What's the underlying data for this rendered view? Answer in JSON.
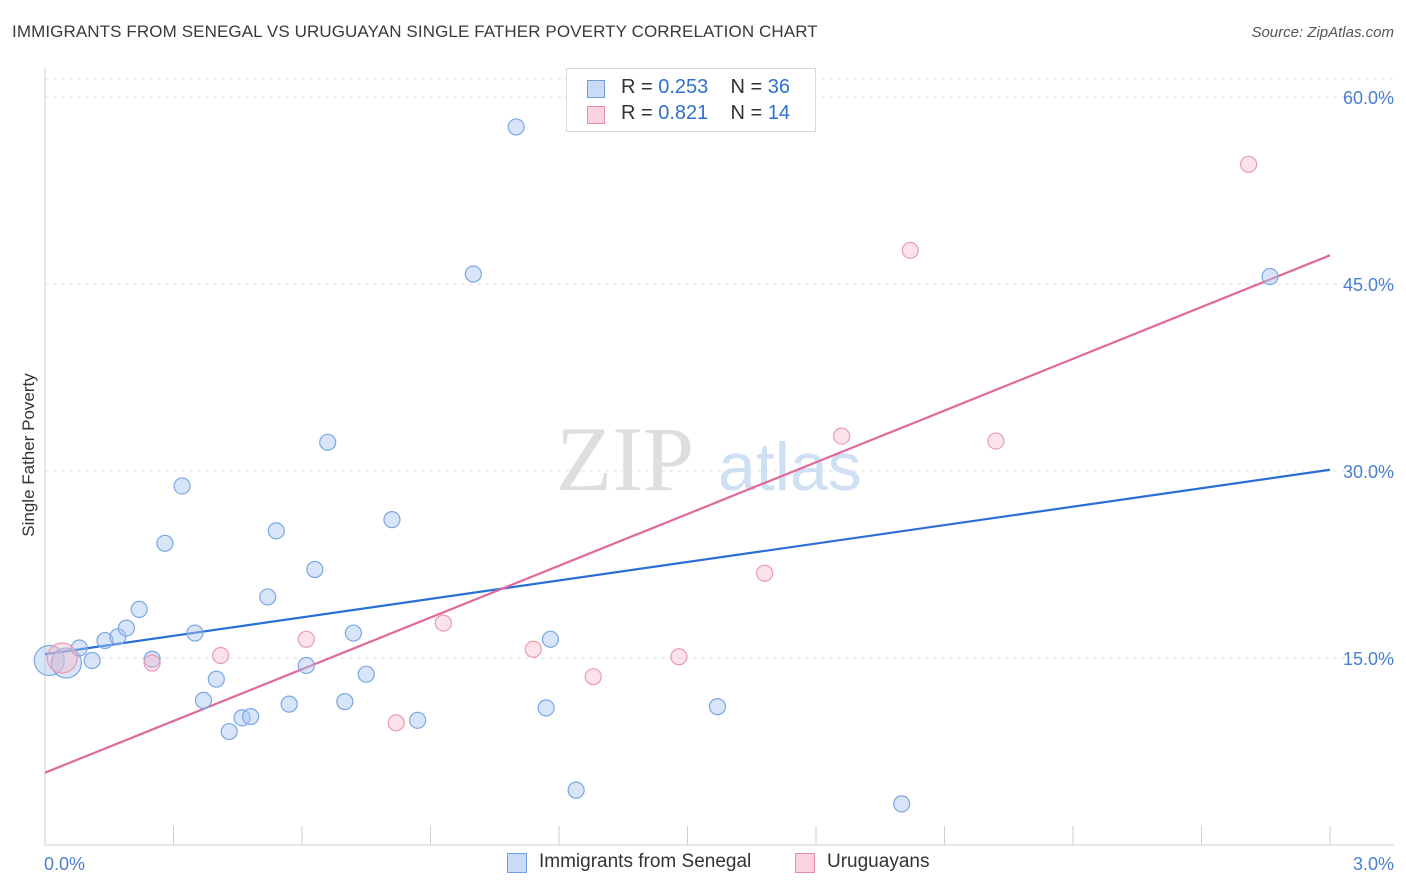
{
  "title": "IMMIGRANTS FROM SENEGAL VS URUGUAYAN SINGLE FATHER POVERTY CORRELATION CHART",
  "source": "Source: ZipAtlas.com",
  "watermark": {
    "zip": "ZIP",
    "atlas": "atlas"
  },
  "legend": {
    "row1": {
      "r_label": "R =",
      "r_value": "0.253",
      "n_label": "N =",
      "n_value": "36"
    },
    "row2": {
      "r_label": "R =",
      "r_value": "0.821",
      "n_label": "N =",
      "n_value": "14"
    }
  },
  "colors": {
    "senegal": "#a8c6f0",
    "senegal_line": "#2b6fd6",
    "uruguay": "#f5b8c9",
    "uruguay_line": "#e0689a"
  },
  "chart_data": {
    "type": "scatter",
    "title": "IMMIGRANTS FROM SENEGAL VS URUGUAYAN SINGLE FATHER POVERTY CORRELATION CHART",
    "xlabel": "",
    "ylabel": "Single Father Poverty",
    "xlim": [
      0,
      3.0
    ],
    "ylim": [
      0,
      60.0
    ],
    "x_tick_labels": [
      "0.0%",
      "3.0%"
    ],
    "y_ticks": [
      15.0,
      30.0,
      45.0,
      60.0
    ],
    "y_tick_labels": [
      "15.0%",
      "30.0%",
      "45.0%",
      "60.0%"
    ],
    "grid": true,
    "legend_position": "bottom",
    "series": [
      {
        "name": "Immigrants from Senegal",
        "R": 0.253,
        "N": 36,
        "trend": {
          "x": [
            0,
            3.0
          ],
          "y": [
            15.3,
            30.1
          ]
        },
        "points": [
          {
            "x": 0.01,
            "y": 14.8,
            "big": true
          },
          {
            "x": 0.05,
            "y": 14.6,
            "big": true
          },
          {
            "x": 0.08,
            "y": 15.8
          },
          {
            "x": 0.11,
            "y": 14.8
          },
          {
            "x": 0.14,
            "y": 16.4
          },
          {
            "x": 0.17,
            "y": 16.7
          },
          {
            "x": 0.19,
            "y": 17.4
          },
          {
            "x": 0.22,
            "y": 18.9
          },
          {
            "x": 0.25,
            "y": 14.9
          },
          {
            "x": 0.28,
            "y": 24.2
          },
          {
            "x": 0.32,
            "y": 28.8
          },
          {
            "x": 0.35,
            "y": 17.0
          },
          {
            "x": 0.37,
            "y": 11.6
          },
          {
            "x": 0.4,
            "y": 13.3
          },
          {
            "x": 0.43,
            "y": 9.1
          },
          {
            "x": 0.46,
            "y": 10.2
          },
          {
            "x": 0.48,
            "y": 10.3
          },
          {
            "x": 0.52,
            "y": 19.9
          },
          {
            "x": 0.54,
            "y": 25.2
          },
          {
            "x": 0.57,
            "y": 11.3
          },
          {
            "x": 0.61,
            "y": 14.4
          },
          {
            "x": 0.63,
            "y": 22.1
          },
          {
            "x": 0.66,
            "y": 32.3
          },
          {
            "x": 0.7,
            "y": 11.5
          },
          {
            "x": 0.72,
            "y": 17.0
          },
          {
            "x": 0.75,
            "y": 13.7
          },
          {
            "x": 0.81,
            "y": 26.1
          },
          {
            "x": 0.87,
            "y": 10.0
          },
          {
            "x": 1.0,
            "y": 45.8
          },
          {
            "x": 1.1,
            "y": 57.6
          },
          {
            "x": 1.17,
            "y": 11.0
          },
          {
            "x": 1.18,
            "y": 16.5
          },
          {
            "x": 1.24,
            "y": 4.4
          },
          {
            "x": 1.57,
            "y": 11.1
          },
          {
            "x": 2.0,
            "y": 3.3
          },
          {
            "x": 2.86,
            "y": 45.6
          }
        ]
      },
      {
        "name": "Uruguayans",
        "R": 0.821,
        "N": 14,
        "trend": {
          "x": [
            0,
            3.0
          ],
          "y": [
            5.8,
            47.3
          ]
        },
        "points": [
          {
            "x": 0.04,
            "y": 15.0,
            "big": true
          },
          {
            "x": 0.25,
            "y": 14.6
          },
          {
            "x": 0.41,
            "y": 15.2
          },
          {
            "x": 0.61,
            "y": 16.5
          },
          {
            "x": 0.82,
            "y": 9.8
          },
          {
            "x": 0.93,
            "y": 17.8
          },
          {
            "x": 1.14,
            "y": 15.7
          },
          {
            "x": 1.28,
            "y": 13.5
          },
          {
            "x": 1.48,
            "y": 15.1
          },
          {
            "x": 1.68,
            "y": 21.8
          },
          {
            "x": 1.86,
            "y": 32.8
          },
          {
            "x": 2.02,
            "y": 47.7
          },
          {
            "x": 2.22,
            "y": 32.4
          },
          {
            "x": 2.81,
            "y": 54.6
          }
        ]
      }
    ]
  }
}
